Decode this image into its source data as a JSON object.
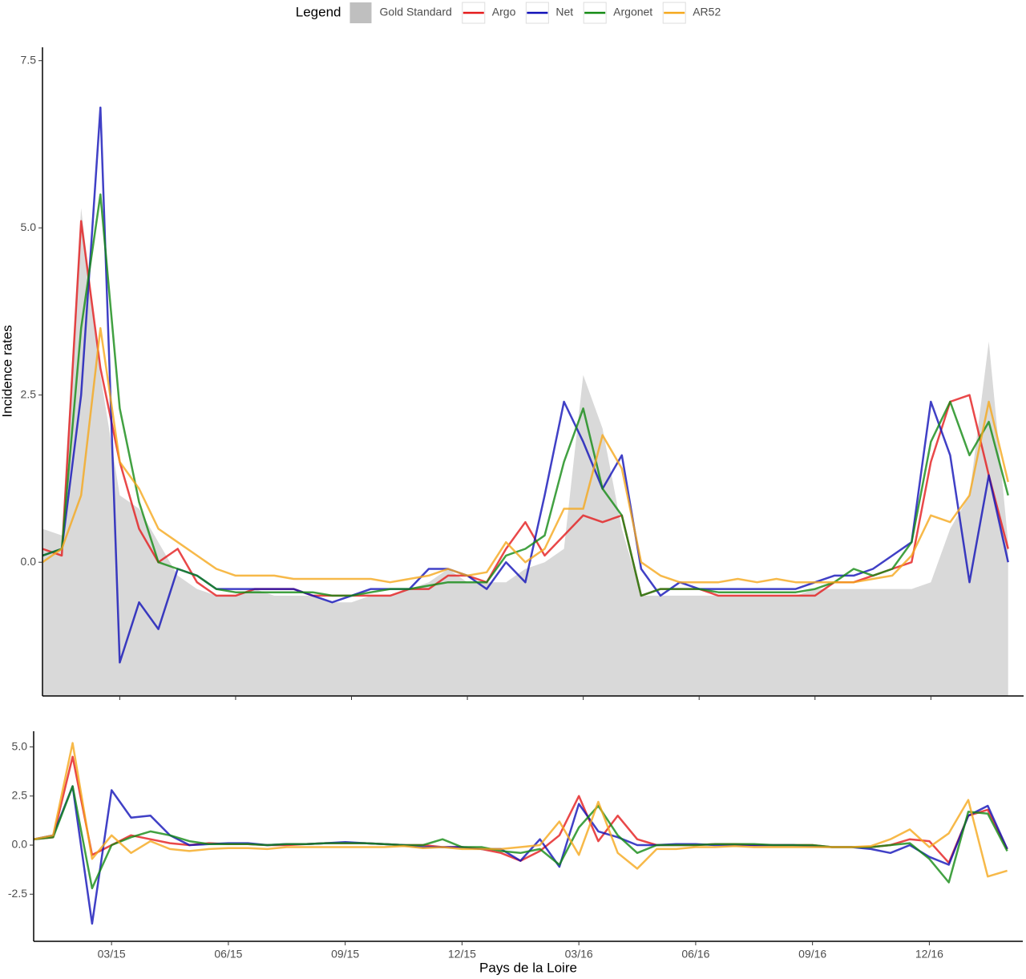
{
  "chart_data": [
    {
      "type": "line",
      "legend_title": "Legend",
      "ylabel": "Incidence rates",
      "x": [
        0,
        0.5,
        1,
        1.5,
        2,
        2.5,
        3,
        3.5,
        4,
        4.5,
        5,
        5.5,
        6,
        6.5,
        7,
        7.5,
        8,
        8.5,
        9,
        9.5,
        10,
        10.5,
        11,
        11.5,
        12,
        12.5,
        13,
        13.5,
        14,
        14.5,
        15,
        15.5,
        16,
        16.5,
        17,
        17.5,
        18,
        18.5,
        19,
        19.5,
        20,
        20.5,
        21,
        21.5,
        22,
        22.5,
        23,
        23.5,
        24,
        24.5,
        25
      ],
      "xlim": [
        0,
        25.4
      ],
      "xticks": [
        2,
        5,
        8,
        11,
        14,
        17,
        20,
        23
      ],
      "ylim": [
        -2,
        7.7
      ],
      "yticks": [
        {
          "value": 0,
          "label": "0.0"
        },
        2.5,
        {
          "value": 5,
          "label": "5.0"
        },
        7.5
      ],
      "series": [
        {
          "name": "Gold Standard",
          "kind": "area",
          "color": "#d9d9d9",
          "values": [
            0.5,
            0.4,
            5.3,
            2.8,
            1.0,
            0.8,
            0.3,
            -0.2,
            -0.4,
            -0.5,
            -0.5,
            -0.4,
            -0.5,
            -0.5,
            -0.5,
            -0.6,
            -0.6,
            -0.5,
            -0.5,
            -0.4,
            -0.3,
            -0.1,
            -0.3,
            -0.3,
            -0.3,
            -0.1,
            0.0,
            0.2,
            2.8,
            2.0,
            0.5,
            -0.5,
            -0.5,
            -0.5,
            -0.5,
            -0.5,
            -0.5,
            -0.5,
            -0.5,
            -0.5,
            -0.4,
            -0.4,
            -0.4,
            -0.4,
            -0.4,
            -0.4,
            -0.3,
            0.5,
            1.0,
            3.3,
            0.3
          ]
        },
        {
          "name": "Argo",
          "kind": "line",
          "color": "#e41a1c",
          "values": [
            0.2,
            0.1,
            5.1,
            2.9,
            1.5,
            0.5,
            0.0,
            0.2,
            -0.3,
            -0.5,
            -0.5,
            -0.4,
            -0.4,
            -0.4,
            -0.5,
            -0.5,
            -0.5,
            -0.5,
            -0.5,
            -0.4,
            -0.4,
            -0.2,
            -0.2,
            -0.3,
            0.2,
            0.6,
            0.1,
            0.4,
            0.7,
            0.6,
            0.7,
            -0.5,
            -0.4,
            -0.4,
            -0.4,
            -0.5,
            -0.5,
            -0.5,
            -0.5,
            -0.5,
            -0.5,
            -0.3,
            -0.3,
            -0.2,
            -0.1,
            0.0,
            1.5,
            2.4,
            2.5,
            1.3,
            0.2
          ]
        },
        {
          "name": "Net",
          "kind": "line",
          "color": "#1010b8",
          "values": [
            0.1,
            0.2,
            2.5,
            6.8,
            -1.5,
            -0.6,
            -1.0,
            -0.1,
            -0.2,
            -0.4,
            -0.4,
            -0.4,
            -0.4,
            -0.4,
            -0.5,
            -0.6,
            -0.5,
            -0.4,
            -0.4,
            -0.4,
            -0.1,
            -0.1,
            -0.2,
            -0.4,
            0.0,
            -0.3,
            1.0,
            2.4,
            1.8,
            1.1,
            1.6,
            -0.1,
            -0.5,
            -0.3,
            -0.4,
            -0.4,
            -0.4,
            -0.4,
            -0.4,
            -0.4,
            -0.3,
            -0.2,
            -0.2,
            -0.1,
            0.1,
            0.3,
            2.4,
            1.6,
            -0.3,
            1.3,
            0.0
          ]
        },
        {
          "name": "Argonet",
          "kind": "line",
          "color": "#138a13",
          "values": [
            0.1,
            0.2,
            3.5,
            5.5,
            2.3,
            0.9,
            0.0,
            -0.1,
            -0.2,
            -0.4,
            -0.45,
            -0.45,
            -0.45,
            -0.45,
            -0.45,
            -0.5,
            -0.5,
            -0.45,
            -0.4,
            -0.4,
            -0.35,
            -0.3,
            -0.3,
            -0.3,
            0.1,
            0.2,
            0.4,
            1.5,
            2.3,
            1.1,
            0.7,
            -0.5,
            -0.4,
            -0.4,
            -0.4,
            -0.45,
            -0.45,
            -0.45,
            -0.45,
            -0.45,
            -0.4,
            -0.3,
            -0.1,
            -0.2,
            -0.1,
            0.3,
            1.8,
            2.4,
            1.6,
            2.1,
            1.0
          ]
        },
        {
          "name": "AR52",
          "kind": "line",
          "color": "#f5a81c",
          "values": [
            0.0,
            0.2,
            1.0,
            3.5,
            1.5,
            1.1,
            0.5,
            0.3,
            0.1,
            -0.1,
            -0.2,
            -0.2,
            -0.2,
            -0.25,
            -0.25,
            -0.25,
            -0.25,
            -0.25,
            -0.3,
            -0.25,
            -0.2,
            -0.1,
            -0.2,
            -0.15,
            0.3,
            0.0,
            0.2,
            0.8,
            0.8,
            1.9,
            1.4,
            0.0,
            -0.2,
            -0.3,
            -0.3,
            -0.3,
            -0.25,
            -0.3,
            -0.25,
            -0.3,
            -0.3,
            -0.3,
            -0.3,
            -0.25,
            -0.2,
            0.1,
            0.7,
            0.6,
            1.0,
            2.4,
            1.2
          ]
        }
      ]
    },
    {
      "type": "line",
      "xlabel": "Pays de la Loire",
      "x": [
        0,
        0.5,
        1,
        1.5,
        2,
        2.5,
        3,
        3.5,
        4,
        4.5,
        5,
        5.5,
        6,
        6.5,
        7,
        7.5,
        8,
        8.5,
        9,
        9.5,
        10,
        10.5,
        11,
        11.5,
        12,
        12.5,
        13,
        13.5,
        14,
        14.5,
        15,
        15.5,
        16,
        16.5,
        17,
        17.5,
        18,
        18.5,
        19,
        19.5,
        20,
        20.5,
        21,
        21.5,
        22,
        22.5,
        23,
        23.5,
        24,
        24.5,
        25
      ],
      "xlim": [
        0,
        25.4
      ],
      "xticks": [
        {
          "value": 2,
          "label": "03/15"
        },
        {
          "value": 5,
          "label": "06/15"
        },
        {
          "value": 8,
          "label": "09/15"
        },
        {
          "value": 11,
          "label": "12/15"
        },
        {
          "value": 14,
          "label": "03/16"
        },
        {
          "value": 17,
          "label": "06/16"
        },
        {
          "value": 20,
          "label": "09/16"
        },
        {
          "value": 23,
          "label": "12/16"
        }
      ],
      "ylim": [
        -4.9,
        5.8
      ],
      "yticks": [
        -2.5,
        {
          "value": 0,
          "label": "0.0"
        },
        2.5,
        {
          "value": 5,
          "label": "5.0"
        }
      ],
      "series": [
        {
          "kind": "line",
          "color": "#e41a1c",
          "values": [
            0.3,
            0.4,
            4.5,
            -0.5,
            0.0,
            0.5,
            0.3,
            0.1,
            0.0,
            0.1,
            0.05,
            0.05,
            0.0,
            0.0,
            0.05,
            0.1,
            0.1,
            0.1,
            0.05,
            0.0,
            0.0,
            -0.1,
            -0.1,
            -0.2,
            -0.4,
            -0.8,
            -0.3,
            0.5,
            2.5,
            0.2,
            1.5,
            0.3,
            0.0,
            0.0,
            0.0,
            0.05,
            0.05,
            0.0,
            0.0,
            0.0,
            0.0,
            -0.1,
            -0.1,
            -0.1,
            0.0,
            0.3,
            0.2,
            -0.9,
            1.5,
            1.8,
            -0.2
          ]
        },
        {
          "kind": "line",
          "color": "#1010b8",
          "values": [
            0.3,
            0.5,
            3.0,
            -4.0,
            2.8,
            1.4,
            1.5,
            0.5,
            0.0,
            0.05,
            0.1,
            0.1,
            0.0,
            0.05,
            0.05,
            0.1,
            0.15,
            0.1,
            0.05,
            0.0,
            -0.1,
            -0.1,
            -0.1,
            -0.2,
            -0.2,
            -0.8,
            0.3,
            -1.1,
            2.1,
            0.7,
            0.4,
            0.0,
            0.0,
            0.05,
            0.05,
            0.0,
            0.0,
            0.0,
            0.0,
            0.0,
            -0.05,
            -0.1,
            -0.1,
            -0.2,
            -0.4,
            0.0,
            -0.6,
            -1.0,
            1.5,
            2.0,
            -0.2
          ]
        },
        {
          "kind": "line",
          "color": "#138a13",
          "values": [
            0.3,
            0.4,
            3.0,
            -2.2,
            0.0,
            0.4,
            0.7,
            0.5,
            0.2,
            0.05,
            0.05,
            0.05,
            0.0,
            0.05,
            0.05,
            0.1,
            0.1,
            0.1,
            0.05,
            0.0,
            0.0,
            0.3,
            -0.1,
            -0.1,
            -0.3,
            -0.4,
            -0.2,
            -1.0,
            0.9,
            2.0,
            0.5,
            -0.4,
            0.0,
            0.0,
            0.0,
            0.05,
            0.05,
            0.05,
            0.0,
            0.0,
            0.0,
            -0.1,
            -0.1,
            -0.1,
            0.0,
            0.1,
            -0.7,
            -1.9,
            1.7,
            1.6,
            -0.3
          ]
        },
        {
          "kind": "line",
          "color": "#f5a81c",
          "values": [
            0.3,
            0.5,
            5.2,
            -0.7,
            0.5,
            -0.4,
            0.2,
            -0.2,
            -0.3,
            -0.2,
            -0.15,
            -0.15,
            -0.2,
            -0.1,
            -0.1,
            -0.1,
            -0.1,
            -0.1,
            -0.1,
            -0.05,
            -0.15,
            -0.1,
            -0.2,
            -0.2,
            -0.2,
            -0.1,
            0.0,
            1.2,
            -0.5,
            2.2,
            -0.4,
            -1.2,
            -0.2,
            -0.2,
            -0.1,
            -0.1,
            -0.05,
            -0.1,
            -0.1,
            -0.1,
            -0.1,
            -0.1,
            -0.1,
            -0.05,
            0.3,
            0.8,
            -0.1,
            0.6,
            2.3,
            -1.6,
            -1.3
          ]
        }
      ]
    }
  ]
}
